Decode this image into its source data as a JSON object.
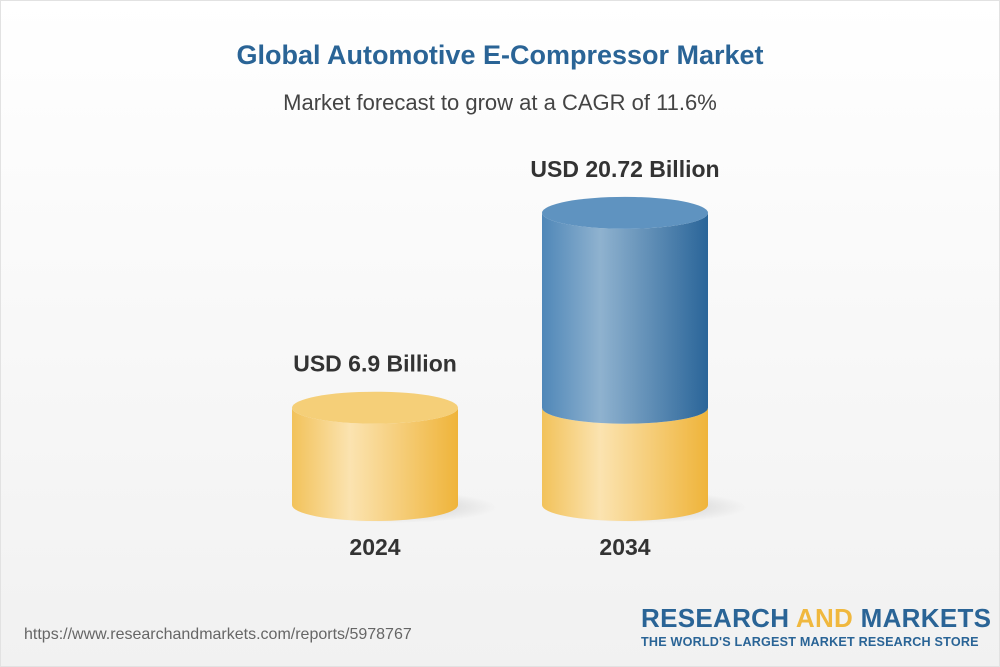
{
  "title": "Global Automotive E-Compressor Market",
  "subtitle": "Market forecast to grow at a CAGR of 11.6%",
  "chart_data": {
    "type": "bar",
    "style": "3d-cylinder",
    "categories": [
      "2024",
      "2034"
    ],
    "values": [
      6.9,
      20.72
    ],
    "data_labels": [
      "USD 6.9 Billion",
      "USD 20.72 Billion"
    ],
    "unit": "USD Billion",
    "colors": {
      "base": "#f3c352",
      "growth": "#2f6fa3"
    }
  },
  "footer": {
    "url": "https://www.researchandmarkets.com/reports/5978767"
  },
  "logo": {
    "word1": "RESEARCH",
    "word2": "AND",
    "word3": "MARKETS",
    "tagline": "THE WORLD'S LARGEST MARKET RESEARCH STORE"
  }
}
